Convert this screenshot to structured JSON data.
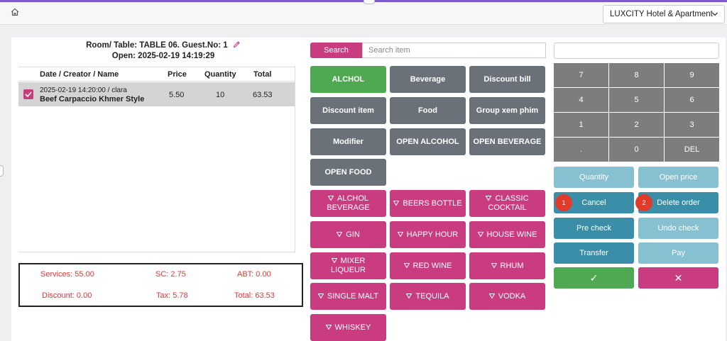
{
  "header": {
    "hotel_select": "LUXCITY Hotel & Apartment"
  },
  "order": {
    "room_line": "Room/ Table: TABLE 06. Guest.No: 1",
    "open_line": "Open: 2025-02-19 14:19:29",
    "columns": [
      "Date / Creator / Name",
      "Price",
      "Quantity",
      "Total"
    ],
    "rows": [
      {
        "meta": "2025-02-19 14:20:00 / clara",
        "name": "Beef Carpaccio Khmer Style",
        "price": "5.50",
        "quantity": "10",
        "total": "63.53",
        "checked": true
      }
    ]
  },
  "summary": {
    "services": "Services: 55.00",
    "sc": "SC: 2.75",
    "abt": "ABT: 0.00",
    "discount": "Discount: 0.00",
    "tax": "Tax: 5.78",
    "total": "Total: 63.53"
  },
  "search": {
    "button": "Search",
    "placeholder": "Search item"
  },
  "categories": [
    "ALCHOL",
    "Beverage",
    "Discount bill",
    "Discount item",
    "Food",
    "Group xem phim",
    "Modifier",
    "OPEN ALCOHOL",
    "OPEN BEVERAGE",
    "OPEN FOOD"
  ],
  "subcategories": [
    "ALCHOL BEVERAGE",
    "BEERS BOTTLE",
    "CLASSIC COCKTAIL",
    "GIN",
    "HAPPY HOUR",
    "HOUSE WINE",
    "MIXER LIQUEUR",
    "RED WINE",
    "RHUM",
    "SINGLE MALT",
    "TEQUILA",
    "VODKA",
    "WHISKEY"
  ],
  "keypad": [
    "7",
    "8",
    "9",
    "4",
    "5",
    "6",
    "1",
    "2",
    "3",
    ".",
    "0",
    "DEL"
  ],
  "actions": {
    "quantity": "Quantity",
    "open_price": "Open price",
    "cancel": "Cancel",
    "delete_order": "Delete order",
    "pre_check": "Pre check",
    "undo_check": "Undo check",
    "transfer": "Transfer",
    "pay": "Pay",
    "confirm": "✓",
    "close": "✕"
  },
  "badges": {
    "one": "1",
    "two": "2"
  },
  "colors": {
    "accent_pink": "#c93c7f",
    "category_grey": "#6b7179",
    "green": "#4ea952",
    "teal": "#3a8ea7",
    "teal_light": "#87c0d0",
    "keypad": "#7d7d7d",
    "summary_red": "#e23535",
    "badge_red": "#e23b2b"
  }
}
